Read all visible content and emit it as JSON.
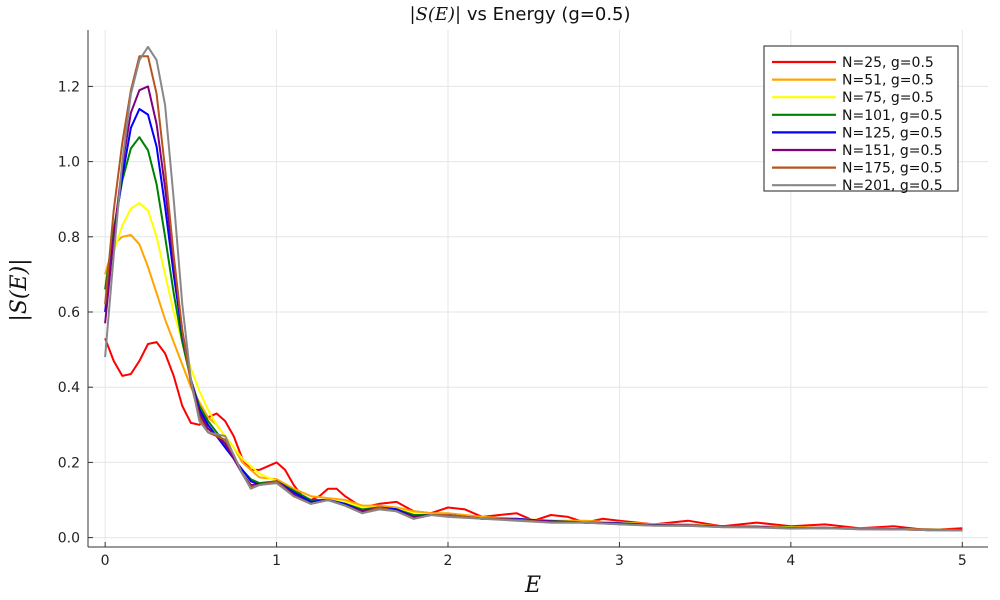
{
  "chart_data": {
    "type": "line",
    "title_math": "|S(E)|",
    "title_text": " vs Energy (g=0.5)",
    "xlabel": "E",
    "ylabel": "|S(E)|",
    "xlim": [
      -0.1,
      5.15
    ],
    "ylim": [
      -0.025,
      1.35
    ],
    "xticks": [
      0,
      1,
      2,
      3,
      4,
      5
    ],
    "yticks": [
      0.0,
      0.2,
      0.4,
      0.6,
      0.8,
      1.0,
      1.2
    ],
    "xtick_labels": [
      "0",
      "1",
      "2",
      "3",
      "4",
      "5"
    ],
    "ytick_labels": [
      "0.0",
      "0.2",
      "0.4",
      "0.6",
      "0.8",
      "1.0",
      "1.2"
    ],
    "grid": true,
    "legend_position": "top-right",
    "series": [
      {
        "name": "N=25, g=0.5",
        "color": "#ff0000",
        "x": [
          0,
          0.05,
          0.1,
          0.15,
          0.2,
          0.25,
          0.3,
          0.35,
          0.4,
          0.45,
          0.5,
          0.55,
          0.6,
          0.65,
          0.7,
          0.75,
          0.8,
          0.85,
          0.9,
          0.95,
          1.0,
          1.05,
          1.1,
          1.15,
          1.2,
          1.25,
          1.3,
          1.35,
          1.4,
          1.5,
          1.6,
          1.7,
          1.8,
          1.9,
          2.0,
          2.1,
          2.2,
          2.3,
          2.4,
          2.5,
          2.6,
          2.7,
          2.8,
          2.9,
          3.0,
          3.2,
          3.4,
          3.6,
          3.8,
          4.0,
          4.2,
          4.4,
          4.6,
          4.8,
          5.0
        ],
        "y": [
          0.53,
          0.47,
          0.43,
          0.435,
          0.47,
          0.515,
          0.52,
          0.49,
          0.43,
          0.35,
          0.305,
          0.3,
          0.32,
          0.33,
          0.31,
          0.27,
          0.21,
          0.18,
          0.18,
          0.19,
          0.2,
          0.18,
          0.14,
          0.11,
          0.1,
          0.11,
          0.13,
          0.13,
          0.11,
          0.08,
          0.09,
          0.095,
          0.07,
          0.065,
          0.08,
          0.075,
          0.055,
          0.06,
          0.065,
          0.045,
          0.06,
          0.055,
          0.04,
          0.05,
          0.045,
          0.035,
          0.045,
          0.03,
          0.04,
          0.03,
          0.035,
          0.025,
          0.03,
          0.02,
          0.025
        ]
      },
      {
        "name": "N=51, g=0.5",
        "color": "#ffa500",
        "x": [
          0,
          0.05,
          0.1,
          0.15,
          0.2,
          0.25,
          0.3,
          0.35,
          0.4,
          0.45,
          0.5,
          0.55,
          0.6,
          0.65,
          0.7,
          0.75,
          0.8,
          0.9,
          1.0,
          1.1,
          1.2,
          1.3,
          1.4,
          1.5,
          1.6,
          1.7,
          1.8,
          1.9,
          2.0,
          2.2,
          2.4,
          2.6,
          2.8,
          3.0,
          3.2,
          3.4,
          3.6,
          3.8,
          4.0,
          4.2,
          4.4,
          4.6,
          4.8,
          5.0
        ],
        "y": [
          0.7,
          0.78,
          0.8,
          0.805,
          0.78,
          0.72,
          0.65,
          0.58,
          0.52,
          0.46,
          0.4,
          0.36,
          0.32,
          0.3,
          0.27,
          0.24,
          0.2,
          0.16,
          0.155,
          0.13,
          0.11,
          0.105,
          0.1,
          0.085,
          0.085,
          0.08,
          0.07,
          0.065,
          0.065,
          0.055,
          0.05,
          0.045,
          0.045,
          0.04,
          0.035,
          0.035,
          0.03,
          0.03,
          0.028,
          0.026,
          0.025,
          0.023,
          0.022,
          0.02
        ]
      },
      {
        "name": "N=75, g=0.5",
        "color": "#ffff00",
        "x": [
          0,
          0.05,
          0.1,
          0.15,
          0.2,
          0.25,
          0.3,
          0.35,
          0.4,
          0.45,
          0.5,
          0.55,
          0.6,
          0.65,
          0.7,
          0.75,
          0.8,
          0.9,
          1.0,
          1.1,
          1.2,
          1.3,
          1.4,
          1.5,
          1.6,
          1.7,
          1.8,
          1.9,
          2.0,
          2.2,
          2.4,
          2.6,
          2.8,
          3.0,
          3.2,
          3.4,
          3.6,
          3.8,
          4.0,
          4.2,
          4.4,
          4.6,
          4.8,
          5.0
        ],
        "y": [
          0.68,
          0.76,
          0.83,
          0.875,
          0.89,
          0.87,
          0.8,
          0.7,
          0.6,
          0.52,
          0.45,
          0.39,
          0.34,
          0.3,
          0.27,
          0.24,
          0.21,
          0.17,
          0.15,
          0.12,
          0.1,
          0.1,
          0.095,
          0.08,
          0.08,
          0.075,
          0.065,
          0.06,
          0.06,
          0.05,
          0.05,
          0.045,
          0.04,
          0.04,
          0.035,
          0.032,
          0.03,
          0.028,
          0.027,
          0.025,
          0.024,
          0.022,
          0.021,
          0.02
        ]
      },
      {
        "name": "N=101, g=0.5",
        "color": "#008000",
        "x": [
          0,
          0.05,
          0.1,
          0.15,
          0.2,
          0.25,
          0.3,
          0.35,
          0.4,
          0.45,
          0.5,
          0.55,
          0.6,
          0.65,
          0.7,
          0.75,
          0.8,
          0.85,
          0.9,
          1.0,
          1.1,
          1.2,
          1.3,
          1.4,
          1.5,
          1.6,
          1.7,
          1.8,
          1.9,
          2.0,
          2.2,
          2.4,
          2.6,
          2.8,
          3.0,
          3.2,
          3.4,
          3.6,
          3.8,
          4.0,
          4.2,
          4.4,
          4.6,
          4.8,
          5.0
        ],
        "y": [
          0.66,
          0.82,
          0.95,
          1.035,
          1.065,
          1.03,
          0.94,
          0.8,
          0.65,
          0.52,
          0.42,
          0.35,
          0.31,
          0.28,
          0.25,
          0.21,
          0.18,
          0.155,
          0.145,
          0.15,
          0.125,
          0.1,
          0.1,
          0.09,
          0.075,
          0.08,
          0.075,
          0.06,
          0.06,
          0.06,
          0.05,
          0.048,
          0.045,
          0.04,
          0.038,
          0.034,
          0.032,
          0.03,
          0.028,
          0.026,
          0.025,
          0.024,
          0.022,
          0.021,
          0.02
        ]
      },
      {
        "name": "N=125, g=0.5",
        "color": "#0000ff",
        "x": [
          0,
          0.05,
          0.1,
          0.15,
          0.2,
          0.25,
          0.3,
          0.35,
          0.4,
          0.45,
          0.5,
          0.55,
          0.6,
          0.65,
          0.7,
          0.75,
          0.8,
          0.85,
          0.9,
          1.0,
          1.1,
          1.2,
          1.3,
          1.4,
          1.5,
          1.6,
          1.7,
          1.8,
          1.9,
          2.0,
          2.2,
          2.4,
          2.6,
          2.8,
          3.0,
          3.2,
          3.4,
          3.6,
          3.8,
          4.0,
          4.2,
          4.4,
          4.6,
          4.8,
          5.0
        ],
        "y": [
          0.6,
          0.8,
          0.96,
          1.09,
          1.14,
          1.125,
          1.04,
          0.88,
          0.7,
          0.54,
          0.42,
          0.34,
          0.3,
          0.27,
          0.24,
          0.21,
          0.18,
          0.15,
          0.14,
          0.15,
          0.12,
          0.095,
          0.1,
          0.09,
          0.07,
          0.08,
          0.075,
          0.055,
          0.06,
          0.06,
          0.05,
          0.05,
          0.043,
          0.04,
          0.038,
          0.033,
          0.033,
          0.029,
          0.029,
          0.025,
          0.026,
          0.023,
          0.023,
          0.02,
          0.02
        ]
      },
      {
        "name": "N=151, g=0.5",
        "color": "#800080",
        "x": [
          0,
          0.05,
          0.1,
          0.15,
          0.2,
          0.25,
          0.3,
          0.35,
          0.4,
          0.45,
          0.5,
          0.55,
          0.6,
          0.65,
          0.7,
          0.75,
          0.8,
          0.85,
          0.9,
          1.0,
          1.1,
          1.2,
          1.3,
          1.4,
          1.5,
          1.6,
          1.7,
          1.8,
          1.9,
          2.0,
          2.2,
          2.4,
          2.6,
          2.8,
          3.0,
          3.2,
          3.4,
          3.6,
          3.8,
          4.0,
          4.2,
          4.4,
          4.6,
          4.8,
          5.0
        ],
        "y": [
          0.57,
          0.8,
          0.99,
          1.13,
          1.19,
          1.2,
          1.1,
          0.93,
          0.73,
          0.55,
          0.42,
          0.33,
          0.29,
          0.27,
          0.25,
          0.21,
          0.17,
          0.14,
          0.14,
          0.15,
          0.115,
          0.09,
          0.1,
          0.085,
          0.07,
          0.08,
          0.07,
          0.055,
          0.06,
          0.06,
          0.05,
          0.048,
          0.043,
          0.04,
          0.037,
          0.033,
          0.032,
          0.029,
          0.028,
          0.025,
          0.026,
          0.023,
          0.022,
          0.021,
          0.02
        ]
      },
      {
        "name": "N=175, g=0.5",
        "color": "#b5541f",
        "x": [
          0,
          0.05,
          0.1,
          0.15,
          0.2,
          0.25,
          0.3,
          0.35,
          0.4,
          0.45,
          0.5,
          0.55,
          0.6,
          0.65,
          0.7,
          0.75,
          0.8,
          0.85,
          0.9,
          1.0,
          1.1,
          1.2,
          1.3,
          1.4,
          1.5,
          1.6,
          1.7,
          1.8,
          1.9,
          2.0,
          2.2,
          2.4,
          2.6,
          2.8,
          3.0,
          3.2,
          3.4,
          3.6,
          3.8,
          4.0,
          4.2,
          4.4,
          4.6,
          4.8,
          5.0
        ],
        "y": [
          0.62,
          0.87,
          1.05,
          1.19,
          1.28,
          1.28,
          1.18,
          0.98,
          0.75,
          0.55,
          0.41,
          0.32,
          0.28,
          0.27,
          0.26,
          0.22,
          0.17,
          0.135,
          0.14,
          0.15,
          0.11,
          0.09,
          0.1,
          0.085,
          0.065,
          0.08,
          0.07,
          0.05,
          0.06,
          0.06,
          0.05,
          0.048,
          0.04,
          0.04,
          0.036,
          0.032,
          0.032,
          0.028,
          0.028,
          0.025,
          0.026,
          0.022,
          0.022,
          0.02,
          0.02
        ]
      },
      {
        "name": "N=201, g=0.5",
        "color": "#888888",
        "x": [
          0,
          0.05,
          0.1,
          0.15,
          0.2,
          0.25,
          0.3,
          0.35,
          0.4,
          0.45,
          0.5,
          0.55,
          0.6,
          0.65,
          0.7,
          0.75,
          0.8,
          0.85,
          0.9,
          1.0,
          1.1,
          1.2,
          1.3,
          1.4,
          1.5,
          1.6,
          1.7,
          1.8,
          1.9,
          2.0,
          2.2,
          2.4,
          2.6,
          2.8,
          3.0,
          3.2,
          3.4,
          3.6,
          3.8,
          4.0,
          4.2,
          4.4,
          4.6,
          4.8,
          5.0
        ],
        "y": [
          0.48,
          0.75,
          1.0,
          1.18,
          1.27,
          1.305,
          1.27,
          1.15,
          0.9,
          0.62,
          0.42,
          0.31,
          0.28,
          0.275,
          0.27,
          0.22,
          0.17,
          0.13,
          0.14,
          0.145,
          0.11,
          0.09,
          0.1,
          0.085,
          0.065,
          0.075,
          0.07,
          0.05,
          0.06,
          0.055,
          0.05,
          0.045,
          0.04,
          0.04,
          0.035,
          0.032,
          0.031,
          0.028,
          0.027,
          0.024,
          0.025,
          0.022,
          0.022,
          0.02,
          0.019
        ]
      }
    ]
  }
}
